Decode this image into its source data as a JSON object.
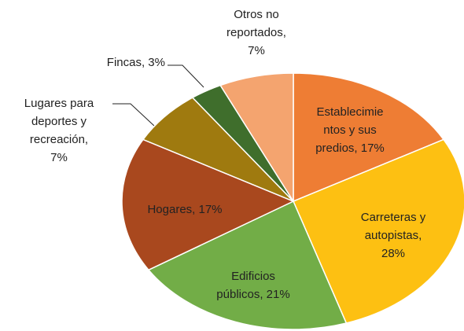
{
  "chart_data": {
    "type": "pie",
    "values": [
      17,
      28,
      21,
      17,
      7,
      3,
      7
    ],
    "value_labels": [
      [
        "Establecimie",
        "ntos y sus",
        "predios, 17%"
      ],
      [
        "Carreteras y",
        "autopistas,",
        "28%"
      ],
      [
        "Edificios",
        "públicos, 21%"
      ],
      [
        "Hogares, 17%"
      ],
      [
        "Lugares para",
        "deportes y",
        "recreación,",
        "7%"
      ],
      [
        "Fincas, 3%"
      ],
      [
        "Otros no",
        "reportados,",
        "7%"
      ]
    ],
    "colors": [
      "#ee7d34",
      "#fdc012",
      "#72ad47",
      "#a9481e",
      "#9f7a0f",
      "#3f6e2c",
      "#f4a46f"
    ]
  }
}
